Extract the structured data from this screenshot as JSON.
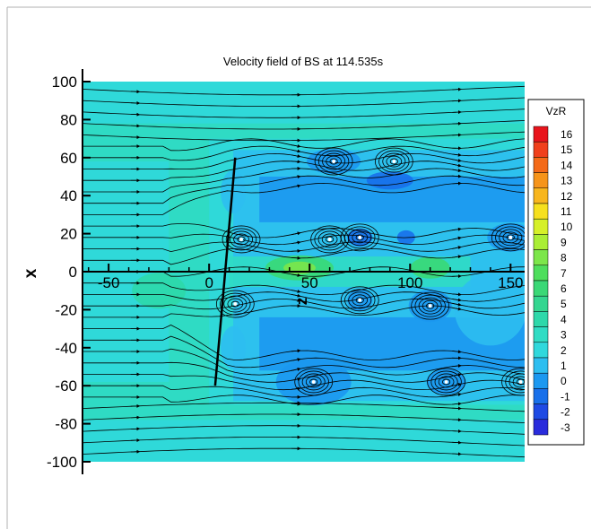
{
  "chart_data": {
    "type": "heatmap",
    "title": "Velocity field of BS at 114.535s",
    "xlabel": "z",
    "ylabel": "x",
    "xlim": [
      -63,
      157
    ],
    "ylim": [
      -100,
      100
    ],
    "x_ticks": [
      -50,
      0,
      50,
      100,
      150
    ],
    "x_tick_labels": [
      "-50",
      "0",
      "50",
      "100",
      "150"
    ],
    "y_ticks": [
      100,
      80,
      60,
      40,
      20,
      0,
      -20,
      -40,
      -60,
      -80,
      -100
    ],
    "y_tick_labels": [
      "100",
      "80",
      "60",
      "40",
      "20",
      "0",
      "-20",
      "-40",
      "-60",
      "-80",
      "-100"
    ],
    "grid": false,
    "colorbar": {
      "title": "VzR",
      "levels": [
        16,
        15,
        14,
        13,
        12,
        11,
        10,
        9,
        8,
        7,
        6,
        5,
        4,
        3,
        2,
        1,
        0,
        -1,
        -2,
        -3
      ],
      "level_labels": [
        "16",
        "15",
        "14",
        "13",
        "12",
        "11",
        "10",
        "9",
        "8",
        "7",
        "6",
        "5",
        "4",
        "3",
        "2",
        "1",
        "0",
        "-1",
        "-2",
        "-3"
      ],
      "colors": [
        "#e8141c",
        "#f0401c",
        "#f46a18",
        "#f6941a",
        "#f8b61e",
        "#f6e01e",
        "#d6f028",
        "#aaee34",
        "#7ce64a",
        "#4ede5c",
        "#3ad876",
        "#34d690",
        "#2ed8aa",
        "#30dcc4",
        "#30d8dc",
        "#2ebef0",
        "#1c98f0",
        "#1870ea",
        "#1e4ae4",
        "#2a2cdc"
      ]
    },
    "plate_line": {
      "x": [
        3,
        13
      ],
      "y": [
        -60,
        60
      ]
    },
    "vortices": [
      {
        "x": 62,
        "y": 58
      },
      {
        "x": 92,
        "y": 58
      },
      {
        "x": 16,
        "y": 17
      },
      {
        "x": 60,
        "y": 17
      },
      {
        "x": 75,
        "y": 18
      },
      {
        "x": 150,
        "y": 18
      },
      {
        "x": 13,
        "y": -17
      },
      {
        "x": 75,
        "y": -15
      },
      {
        "x": 110,
        "y": -18
      },
      {
        "x": 52,
        "y": -58
      },
      {
        "x": 118,
        "y": -58
      },
      {
        "x": 155,
        "y": -58
      }
    ]
  }
}
